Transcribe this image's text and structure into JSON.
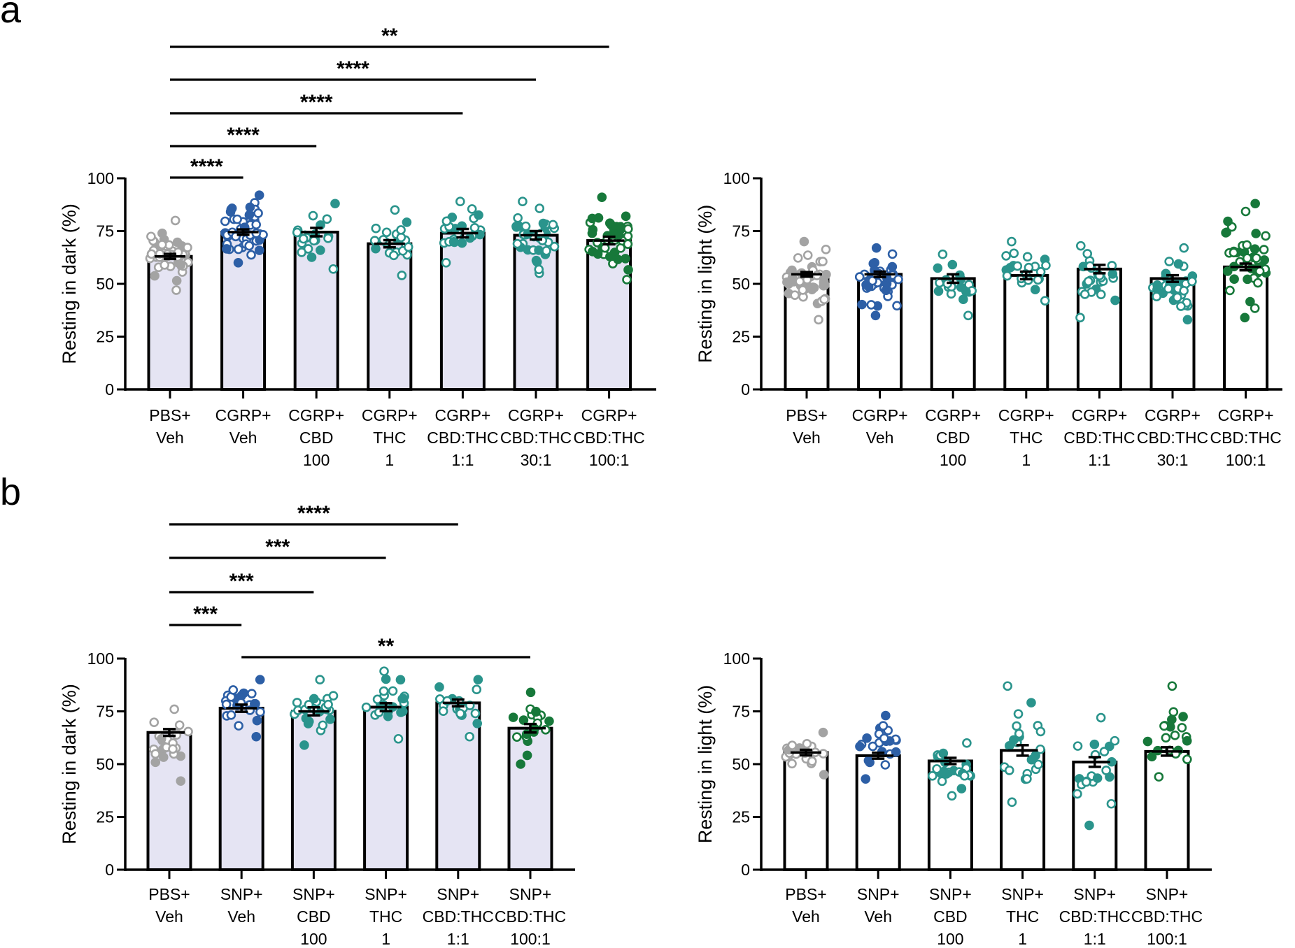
{
  "panel_letters": [
    "a",
    "b"
  ],
  "colors": {
    "gray": "#a3a3a3",
    "blue": "#2d5fa6",
    "teal": "#2a948c",
    "green": "#17783a",
    "bar_dark": "#e5e4f3",
    "bar_light": "#ffffff"
  },
  "chart_data": [
    {
      "id": "a-dark",
      "type": "bar",
      "panel": "a",
      "ylabel": "Resting in dark (%)",
      "ylim": [
        0,
        100
      ],
      "yticks": [
        "0",
        "25",
        "50",
        "75",
        "100"
      ],
      "categories": [
        [
          "PBS+",
          "Veh"
        ],
        [
          "CGRP+",
          "Veh"
        ],
        [
          "CGRP+",
          "CBD",
          "100"
        ],
        [
          "CGRP+",
          "THC",
          "1"
        ],
        [
          "CGRP+",
          "CBD:THC",
          "1:1"
        ],
        [
          "CGRP+",
          "CBD:THC",
          "30:1"
        ],
        [
          "CGRP+",
          "CBD:THC",
          "100:1"
        ]
      ],
      "values": [
        63,
        74.5,
        74.5,
        69,
        74,
        73,
        70.5
      ],
      "sem": [
        1.2,
        1.3,
        2,
        1.7,
        2,
        2,
        1.8
      ],
      "points": [
        {
          "n": 45,
          "min": 47,
          "max": 80,
          "color": "gray"
        },
        {
          "n": 45,
          "min": 60,
          "max": 92,
          "color": "blue"
        },
        {
          "n": 20,
          "min": 57,
          "max": 88,
          "color": "teal"
        },
        {
          "n": 22,
          "min": 54,
          "max": 85,
          "color": "teal"
        },
        {
          "n": 24,
          "min": 60,
          "max": 89,
          "color": "teal"
        },
        {
          "n": 35,
          "min": 55,
          "max": 89,
          "color": "teal"
        },
        {
          "n": 40,
          "min": 52,
          "max": 91,
          "color": "green"
        }
      ],
      "significance": [
        {
          "from": 0,
          "to": 6,
          "label": "**"
        },
        {
          "from": 0,
          "to": 5,
          "label": "****"
        },
        {
          "from": 0,
          "to": 4,
          "label": "****"
        },
        {
          "from": 0,
          "to": 2,
          "label": "****"
        },
        {
          "from": 0,
          "to": 1,
          "label": "****"
        }
      ]
    },
    {
      "id": "a-light",
      "type": "bar",
      "panel": "a",
      "ylabel": "Resting in light (%)",
      "ylim": [
        0,
        100
      ],
      "yticks": [
        "0",
        "25",
        "50",
        "75",
        "100"
      ],
      "categories": [
        [
          "PBS+",
          "Veh"
        ],
        [
          "CGRP+",
          "Veh"
        ],
        [
          "CGRP+",
          "CBD",
          "100"
        ],
        [
          "CGRP+",
          "THC",
          "1"
        ],
        [
          "CGRP+",
          "CBD:THC",
          "1:1"
        ],
        [
          "CGRP+",
          "CBD:THC",
          "30:1"
        ],
        [
          "CGRP+",
          "CBD:THC",
          "100:1"
        ]
      ],
      "values": [
        54.5,
        54.5,
        52.5,
        54,
        57,
        52.5,
        58
      ],
      "sem": [
        1.1,
        1.3,
        2,
        1.8,
        2,
        1.6,
        1.6
      ],
      "points": [
        {
          "n": 45,
          "min": 33,
          "max": 70,
          "color": "gray"
        },
        {
          "n": 45,
          "min": 35,
          "max": 67,
          "color": "blue"
        },
        {
          "n": 20,
          "min": 35,
          "max": 64,
          "color": "teal"
        },
        {
          "n": 22,
          "min": 42,
          "max": 70,
          "color": "teal"
        },
        {
          "n": 24,
          "min": 34,
          "max": 68,
          "color": "teal"
        },
        {
          "n": 35,
          "min": 33,
          "max": 67,
          "color": "teal"
        },
        {
          "n": 40,
          "min": 34,
          "max": 88,
          "color": "green"
        }
      ],
      "significance": []
    },
    {
      "id": "b-dark",
      "type": "bar",
      "panel": "b",
      "ylabel": "Resting in dark (%)",
      "ylim": [
        0,
        100
      ],
      "yticks": [
        "0",
        "25",
        "50",
        "75",
        "100"
      ],
      "categories": [
        [
          "PBS+",
          "Veh"
        ],
        [
          "SNP+",
          "Veh"
        ],
        [
          "SNP+",
          "CBD",
          "100"
        ],
        [
          "SNP+",
          "THC",
          "1"
        ],
        [
          "SNP+",
          "CBD:THC",
          "1:1"
        ],
        [
          "SNP+",
          "CBD:THC",
          "100:1"
        ]
      ],
      "values": [
        65,
        76.5,
        75,
        77,
        79,
        67
      ],
      "sem": [
        1.6,
        1.7,
        1.9,
        1.9,
        1.6,
        2
      ],
      "points": [
        {
          "n": 22,
          "min": 42,
          "max": 76,
          "color": "gray"
        },
        {
          "n": 22,
          "min": 63,
          "max": 90,
          "color": "blue"
        },
        {
          "n": 24,
          "min": 59,
          "max": 90,
          "color": "teal"
        },
        {
          "n": 22,
          "min": 62,
          "max": 94,
          "color": "teal"
        },
        {
          "n": 20,
          "min": 63,
          "max": 90,
          "color": "teal"
        },
        {
          "n": 20,
          "min": 50,
          "max": 84,
          "color": "green"
        }
      ],
      "significance": [
        {
          "from": 0,
          "to": 4,
          "label": "****"
        },
        {
          "from": 0,
          "to": 3,
          "label": "***"
        },
        {
          "from": 0,
          "to": 2,
          "label": "***"
        },
        {
          "from": 0,
          "to": 1,
          "label": "***"
        },
        {
          "from": 1,
          "to": 5,
          "label": "**"
        }
      ]
    },
    {
      "id": "b-light",
      "type": "bar",
      "panel": "b",
      "ylabel": "Resting in light (%)",
      "ylim": [
        0,
        100
      ],
      "yticks": [
        "0",
        "25",
        "50",
        "75",
        "100"
      ],
      "categories": [
        [
          "PBS+",
          "Veh"
        ],
        [
          "SNP+",
          "Veh"
        ],
        [
          "SNP+",
          "CBD",
          "100"
        ],
        [
          "SNP+",
          "THC",
          "1"
        ],
        [
          "SNP+",
          "CBD:THC",
          "1:1"
        ],
        [
          "SNP+",
          "CBD:THC",
          "100:1"
        ]
      ],
      "values": [
        55.5,
        54,
        51.5,
        56.5,
        51,
        56
      ],
      "sem": [
        1.3,
        1.4,
        1.5,
        2.5,
        2.3,
        2
      ],
      "points": [
        {
          "n": 22,
          "min": 45,
          "max": 65,
          "color": "gray"
        },
        {
          "n": 22,
          "min": 43,
          "max": 73,
          "color": "blue"
        },
        {
          "n": 24,
          "min": 35,
          "max": 60,
          "color": "teal"
        },
        {
          "n": 22,
          "min": 32,
          "max": 87,
          "color": "teal"
        },
        {
          "n": 20,
          "min": 21,
          "max": 72,
          "color": "teal"
        },
        {
          "n": 20,
          "min": 44,
          "max": 87,
          "color": "green"
        }
      ],
      "significance": []
    }
  ]
}
